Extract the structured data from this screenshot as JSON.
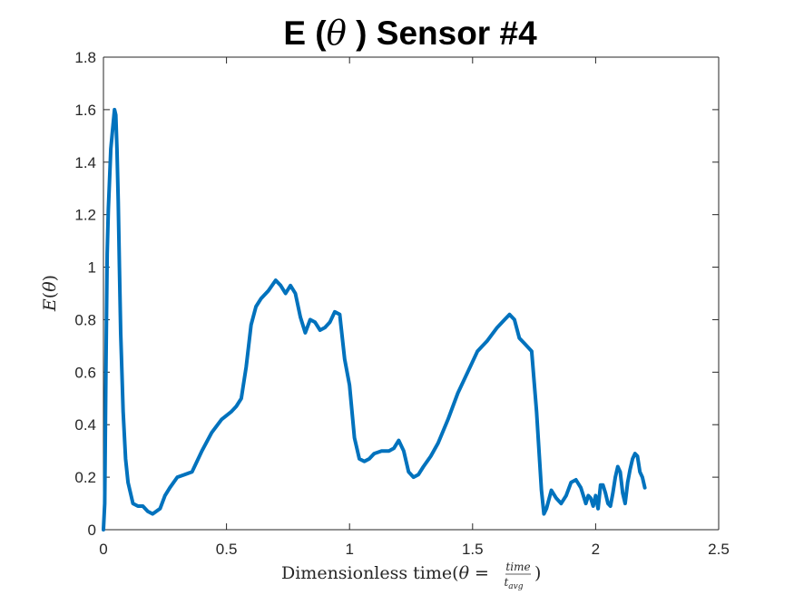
{
  "chart_data": {
    "type": "line",
    "title": "E (θ ) Sensor #4",
    "title_parts": {
      "prefix": "E (",
      "symbol": "θ",
      "suffix": " ) Sensor #4"
    },
    "xlabel": "Dimensionless time(θ = time / t_avg)",
    "xlabel_parts": {
      "text": "Dimensionless time(",
      "theta": "θ",
      "equals": " = ",
      "numerator": "time",
      "denominator": "t",
      "denominator_sub": "avg",
      "close": ")"
    },
    "ylabel": "E(θ)",
    "ylabel_parts": {
      "E": "E",
      "open": "(",
      "theta": "θ",
      "close": ")"
    },
    "xlim": [
      0,
      2.5
    ],
    "ylim": [
      0,
      1.8
    ],
    "xticks": [
      "0",
      "0.5",
      "1",
      "1.5",
      "2",
      "2.5"
    ],
    "yticks": [
      "0",
      "0.2",
      "0.4",
      "0.6",
      "0.8",
      "1",
      "1.2",
      "1.4",
      "1.6",
      "1.8"
    ],
    "grid": false,
    "series": [
      {
        "color": "#0072BD",
        "x": [
          0.0,
          0.005,
          0.01,
          0.015,
          0.02,
          0.03,
          0.04,
          0.045,
          0.05,
          0.055,
          0.06,
          0.065,
          0.07,
          0.08,
          0.09,
          0.1,
          0.12,
          0.14,
          0.16,
          0.18,
          0.2,
          0.23,
          0.25,
          0.27,
          0.3,
          0.33,
          0.36,
          0.4,
          0.44,
          0.48,
          0.52,
          0.54,
          0.56,
          0.58,
          0.6,
          0.62,
          0.64,
          0.67,
          0.7,
          0.72,
          0.74,
          0.76,
          0.78,
          0.8,
          0.82,
          0.84,
          0.86,
          0.88,
          0.9,
          0.92,
          0.94,
          0.96,
          0.98,
          1.0,
          1.02,
          1.04,
          1.06,
          1.08,
          1.1,
          1.13,
          1.16,
          1.18,
          1.2,
          1.22,
          1.24,
          1.26,
          1.28,
          1.3,
          1.33,
          1.36,
          1.4,
          1.44,
          1.48,
          1.52,
          1.56,
          1.6,
          1.63,
          1.65,
          1.67,
          1.69,
          1.71,
          1.74,
          1.76,
          1.78,
          1.79,
          1.8,
          1.82,
          1.84,
          1.86,
          1.88,
          1.9,
          1.92,
          1.94,
          1.96,
          1.97,
          1.98,
          1.99,
          2.0,
          2.01,
          2.02,
          2.03,
          2.04,
          2.05,
          2.06,
          2.07,
          2.08,
          2.09,
          2.1,
          2.11,
          2.12,
          2.13,
          2.14,
          2.15,
          2.16,
          2.17,
          2.18,
          2.19,
          2.2
        ],
        "y": [
          0.0,
          0.1,
          0.6,
          1.05,
          1.22,
          1.45,
          1.55,
          1.6,
          1.58,
          1.45,
          1.25,
          1.0,
          0.75,
          0.45,
          0.27,
          0.18,
          0.1,
          0.09,
          0.09,
          0.07,
          0.06,
          0.08,
          0.13,
          0.16,
          0.2,
          0.21,
          0.22,
          0.3,
          0.37,
          0.42,
          0.45,
          0.47,
          0.5,
          0.62,
          0.78,
          0.85,
          0.88,
          0.91,
          0.95,
          0.93,
          0.9,
          0.93,
          0.9,
          0.81,
          0.75,
          0.8,
          0.79,
          0.76,
          0.77,
          0.79,
          0.83,
          0.82,
          0.65,
          0.55,
          0.35,
          0.27,
          0.26,
          0.27,
          0.29,
          0.3,
          0.3,
          0.31,
          0.34,
          0.3,
          0.22,
          0.2,
          0.21,
          0.24,
          0.28,
          0.33,
          0.42,
          0.52,
          0.6,
          0.68,
          0.72,
          0.77,
          0.8,
          0.82,
          0.8,
          0.73,
          0.71,
          0.68,
          0.45,
          0.15,
          0.06,
          0.08,
          0.15,
          0.12,
          0.1,
          0.13,
          0.18,
          0.19,
          0.16,
          0.1,
          0.13,
          0.12,
          0.09,
          0.13,
          0.08,
          0.17,
          0.17,
          0.14,
          0.1,
          0.09,
          0.14,
          0.2,
          0.24,
          0.22,
          0.14,
          0.1,
          0.18,
          0.23,
          0.27,
          0.29,
          0.28,
          0.22,
          0.2,
          0.16
        ]
      }
    ]
  }
}
